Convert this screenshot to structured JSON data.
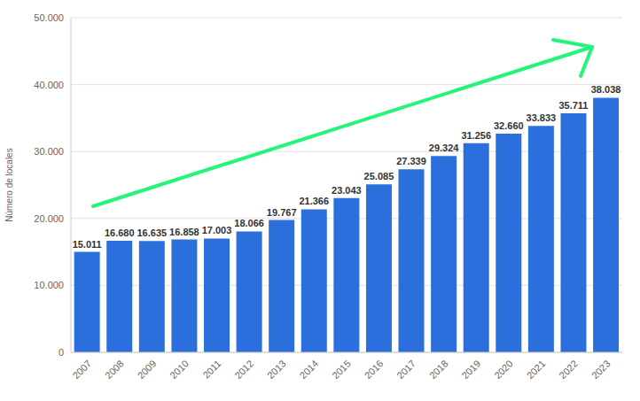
{
  "chart_data": {
    "type": "bar",
    "y_label": "Número de locales",
    "categories": [
      "2007",
      "2008",
      "2009",
      "2010",
      "2011",
      "2012",
      "2013",
      "2014",
      "2015",
      "2016",
      "2017",
      "2018",
      "2019",
      "2020",
      "2021",
      "2022",
      "2023"
    ],
    "values": [
      15011,
      16680,
      16635,
      16858,
      17003,
      18066,
      19767,
      21366,
      23043,
      25085,
      27339,
      29324,
      31256,
      32660,
      33833,
      35711,
      38038
    ],
    "value_labels": [
      "15.011",
      "16.680",
      "16.635",
      "16.858",
      "17.003",
      "18.066",
      "19.767",
      "21.366",
      "23.043",
      "25.085",
      "27.339",
      "29.324",
      "31.256",
      "32.660",
      "33.833",
      "35.711",
      "38.038"
    ],
    "color": "#2a6fdb",
    "ylim": [
      0,
      50000
    ],
    "yticks": [
      0,
      {
        "value": 10000,
        "label": "10.000"
      },
      {
        "value": 20000,
        "label": "20.000"
      },
      {
        "value": 30000,
        "label": "30.000"
      },
      {
        "value": 40000,
        "label": "40.000"
      },
      {
        "value": 50000,
        "label": "50.000"
      }
    ],
    "grid": true,
    "data_labels": true
  }
}
